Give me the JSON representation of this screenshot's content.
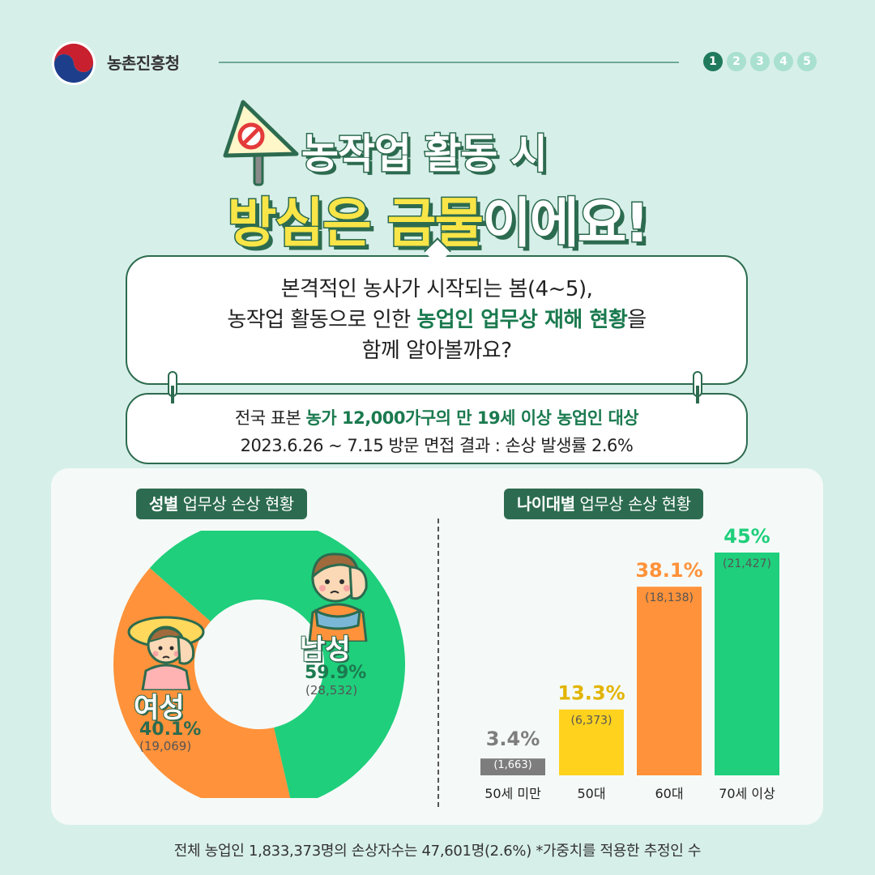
{
  "header": {
    "org_name": "농촌진흥청",
    "pages": [
      "1",
      "2",
      "3",
      "4",
      "5"
    ],
    "active_page": "1"
  },
  "title": {
    "line1": "농작업 활동 시",
    "line2_a": "방심은 금물",
    "line2_b": "이에요!"
  },
  "intro": {
    "line1": "본격적인 농사가 시작되는 봄(4~5),",
    "line2_pre": "농작업 활동으로 인한 ",
    "line2_hl": "농업인 업무상 재해 현황",
    "line2_post": "을",
    "line3": "함께 알아볼까요?"
  },
  "survey": {
    "line1_pre": "전국 표본 ",
    "line1_hl": "농가 12,000가구의 만 19세 이상 농업인 대상",
    "line2": "2023.6.26 ~ 7.15 방문 면접 결과 : 손상 발생률 2.6%"
  },
  "colors": {
    "green": "#1fcf7c",
    "orange": "#ff923a",
    "yellow": "#ffd21e",
    "gray": "#7d7d7d",
    "dark": "#2c6b4f"
  },
  "chart_data": [
    {
      "type": "pie",
      "title": "성별 업무상 손상 현황",
      "title_bold": "성별",
      "title_rest": " 업무상 손상 현황",
      "categories": [
        "남성",
        "여성"
      ],
      "values": [
        59.9,
        40.1
      ],
      "value_labels": [
        "59.9%",
        "40.1%"
      ],
      "counts": [
        "(28,532)",
        "(19,069)"
      ],
      "colors": [
        "#1fcf7c",
        "#ff923a"
      ]
    },
    {
      "type": "bar",
      "title": "나이대별 업무상 손상 현황",
      "title_bold": "나이대별",
      "title_rest": " 업무상 손상 현황",
      "categories": [
        "50세 미만",
        "50대",
        "60대",
        "70세 이상"
      ],
      "values": [
        3.4,
        13.3,
        38.1,
        45
      ],
      "value_labels": [
        "3.4%",
        "13.3%",
        "38.1%",
        "45%"
      ],
      "counts": [
        "(1,663)",
        "(6,373)",
        "(18,138)",
        "(21,427)"
      ],
      "colors": [
        "#7d7d7d",
        "#ffd21e",
        "#ff923a",
        "#1fcf7c"
      ],
      "ylim": [
        0,
        45
      ]
    }
  ],
  "footer": "전체 농업인 1,833,373명의 손상자수는 47,601명(2.6%) *가중치를 적용한 추정인 수"
}
